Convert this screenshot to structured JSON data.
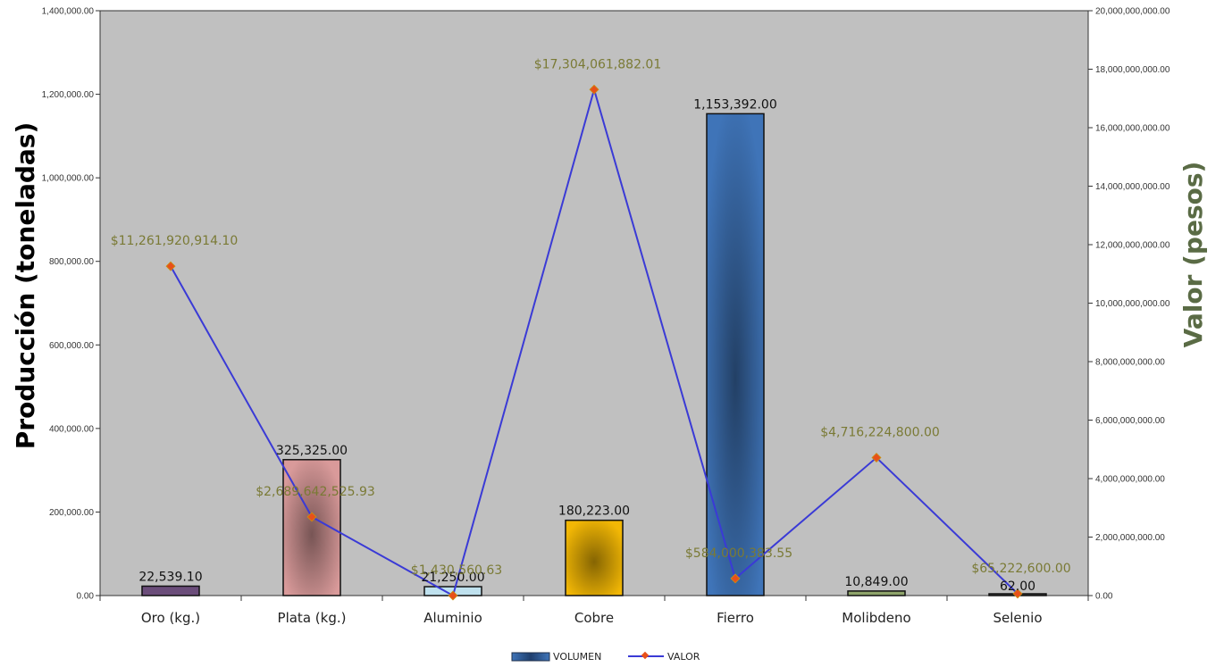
{
  "chart_data": {
    "type": "bar",
    "categories": [
      "Oro (kg.)",
      "Plata (kg.)",
      "Aluminio",
      "Cobre",
      "Fierro",
      "Molibdeno",
      "Selenio"
    ],
    "series": [
      {
        "name": "VOLUMEN",
        "axis": "left",
        "type": "bar",
        "values": [
          22539.1,
          325325.0,
          21250.0,
          180223.0,
          1153392.0,
          10849.0,
          62.0
        ],
        "labels": [
          "22,539.10",
          "325,325.00",
          "21,250.00",
          "180,223.00",
          "1,153,392.00",
          "10,849.00",
          "62.00"
        ],
        "colors": [
          "#6b4d7a",
          "#d99a9a",
          "#bfe1ee",
          "#f2b705",
          "#3f74b8",
          "#8ea46a",
          "#444444"
        ]
      },
      {
        "name": "VALOR",
        "axis": "right",
        "type": "line",
        "values": [
          11261920914.1,
          2689642525.93,
          1430560.63,
          17304061882.01,
          584000383.55,
          4716224800.0,
          65222600.0
        ],
        "labels": [
          "$11,261,920,914.10",
          "$2,689,642,525.93",
          "$1,430,560.63",
          "$17,304,061,882.01",
          "$584,000,383.55",
          "$4,716,224,800.00",
          "$65,222,600.00"
        ],
        "color": "#3a3ad6",
        "marker_color": "#e8501a"
      }
    ],
    "ylabel": "Producción (toneladas)",
    "y2label": "Valor (pesos)",
    "ylim": [
      0,
      1400000
    ],
    "y2lim": [
      0,
      20000000000
    ],
    "yticks": [
      "0.00",
      "200,000.00",
      "400,000.00",
      "600,000.00",
      "800,000.00",
      "1,000,000.00",
      "1,200,000.00",
      "1,400,000.00"
    ],
    "y2ticks": [
      "0.00",
      "2,000,000,000.00",
      "4,000,000,000.00",
      "6,000,000,000.00",
      "8,000,000,000.00",
      "10,000,000,000.00",
      "12,000,000,000.00",
      "14,000,000,000.00",
      "16,000,000,000.00",
      "18,000,000,000.00",
      "20,000,000,000.00"
    ],
    "grid": false,
    "plot_background": "#c0c0c0",
    "legend": {
      "position": "bottom",
      "entries": [
        "VOLUMEN",
        "VALOR"
      ]
    }
  }
}
